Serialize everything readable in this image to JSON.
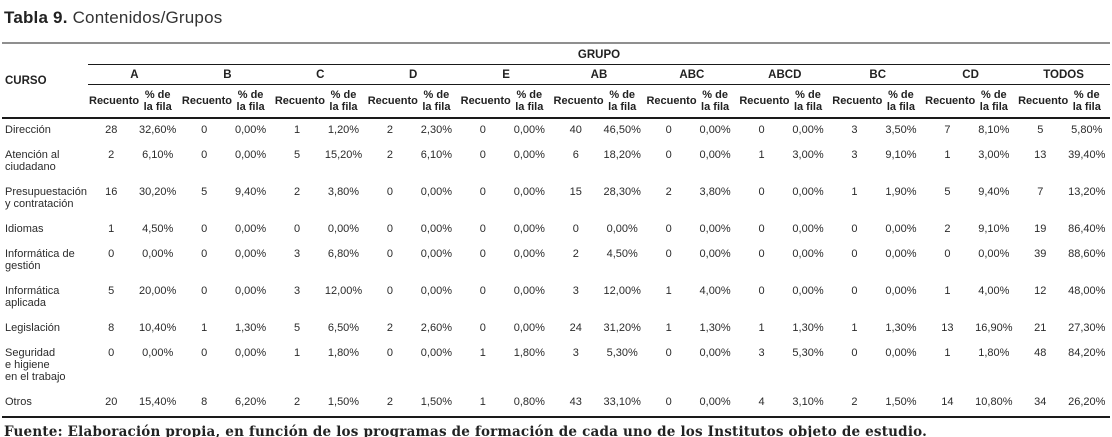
{
  "title": {
    "bold": "Tabla 9.",
    "rest": " Contenidos/Grupos"
  },
  "table": {
    "curso_header": "CURSO",
    "grupo_header": "GRUPO",
    "sub": {
      "recuento": "Recuento",
      "pct": "% de\nla fila"
    },
    "groups": [
      "A",
      "B",
      "C",
      "D",
      "E",
      "AB",
      "ABC",
      "ABCD",
      "BC",
      "CD",
      "TODOS"
    ],
    "rows": [
      {
        "curso": "Dirección",
        "cells": [
          "28",
          "32,60%",
          "0",
          "0,00%",
          "1",
          "1,20%",
          "2",
          "2,30%",
          "0",
          "0,00%",
          "40",
          "46,50%",
          "0",
          "0,00%",
          "0",
          "0,00%",
          "3",
          "3,50%",
          "7",
          "8,10%",
          "5",
          "5,80%"
        ]
      },
      {
        "curso": "Atención al\nciudadano",
        "cells": [
          "2",
          "6,10%",
          "0",
          "0,00%",
          "5",
          "15,20%",
          "2",
          "6,10%",
          "0",
          "0,00%",
          "6",
          "18,20%",
          "0",
          "0,00%",
          "1",
          "3,00%",
          "3",
          "9,10%",
          "1",
          "3,00%",
          "13",
          "39,40%"
        ]
      },
      {
        "curso": "Presupuestación\ny contratación",
        "cells": [
          "16",
          "30,20%",
          "5",
          "9,40%",
          "2",
          "3,80%",
          "0",
          "0,00%",
          "0",
          "0,00%",
          "15",
          "28,30%",
          "2",
          "3,80%",
          "0",
          "0,00%",
          "1",
          "1,90%",
          "5",
          "9,40%",
          "7",
          "13,20%"
        ]
      },
      {
        "curso": "Idiomas",
        "cells": [
          "1",
          "4,50%",
          "0",
          "0,00%",
          "0",
          "0,00%",
          "0",
          "0,00%",
          "0",
          "0,00%",
          "0",
          "0,00%",
          "0",
          "0,00%",
          "0",
          "0,00%",
          "0",
          "0,00%",
          "2",
          "9,10%",
          "19",
          "86,40%"
        ]
      },
      {
        "curso": "Informática de\ngestión",
        "cells": [
          "0",
          "0,00%",
          "0",
          "0,00%",
          "3",
          "6,80%",
          "0",
          "0,00%",
          "0",
          "0,00%",
          "2",
          "4,50%",
          "0",
          "0,00%",
          "0",
          "0,00%",
          "0",
          "0,00%",
          "0",
          "0,00%",
          "39",
          "88,60%"
        ]
      },
      {
        "curso": "Informática\naplicada",
        "cells": [
          "5",
          "20,00%",
          "0",
          "0,00%",
          "3",
          "12,00%",
          "0",
          "0,00%",
          "0",
          "0,00%",
          "3",
          "12,00%",
          "1",
          "4,00%",
          "0",
          "0,00%",
          "0",
          "0,00%",
          "1",
          "4,00%",
          "12",
          "48,00%"
        ]
      },
      {
        "curso": "Legislación",
        "cells": [
          "8",
          "10,40%",
          "1",
          "1,30%",
          "5",
          "6,50%",
          "2",
          "2,60%",
          "0",
          "0,00%",
          "24",
          "31,20%",
          "1",
          "1,30%",
          "1",
          "1,30%",
          "1",
          "1,30%",
          "13",
          "16,90%",
          "21",
          "27,30%"
        ]
      },
      {
        "curso": "Seguridad\ne higiene\nen el trabajo",
        "cells": [
          "0",
          "0,00%",
          "0",
          "0,00%",
          "1",
          "1,80%",
          "0",
          "0,00%",
          "1",
          "1,80%",
          "3",
          "5,30%",
          "0",
          "0,00%",
          "3",
          "5,30%",
          "0",
          "0,00%",
          "1",
          "1,80%",
          "48",
          "84,20%"
        ]
      },
      {
        "curso": "Otros",
        "cells": [
          "20",
          "15,40%",
          "8",
          "6,20%",
          "2",
          "1,50%",
          "2",
          "1,50%",
          "1",
          "0,80%",
          "43",
          "33,10%",
          "0",
          "0,00%",
          "4",
          "3,10%",
          "2",
          "1,50%",
          "14",
          "10,80%",
          "34",
          "26,20%"
        ]
      }
    ]
  },
  "footer": "Fuente: Elaboración propia, en función de los programas de formación de cada uno de los Institutos objeto de estudio."
}
